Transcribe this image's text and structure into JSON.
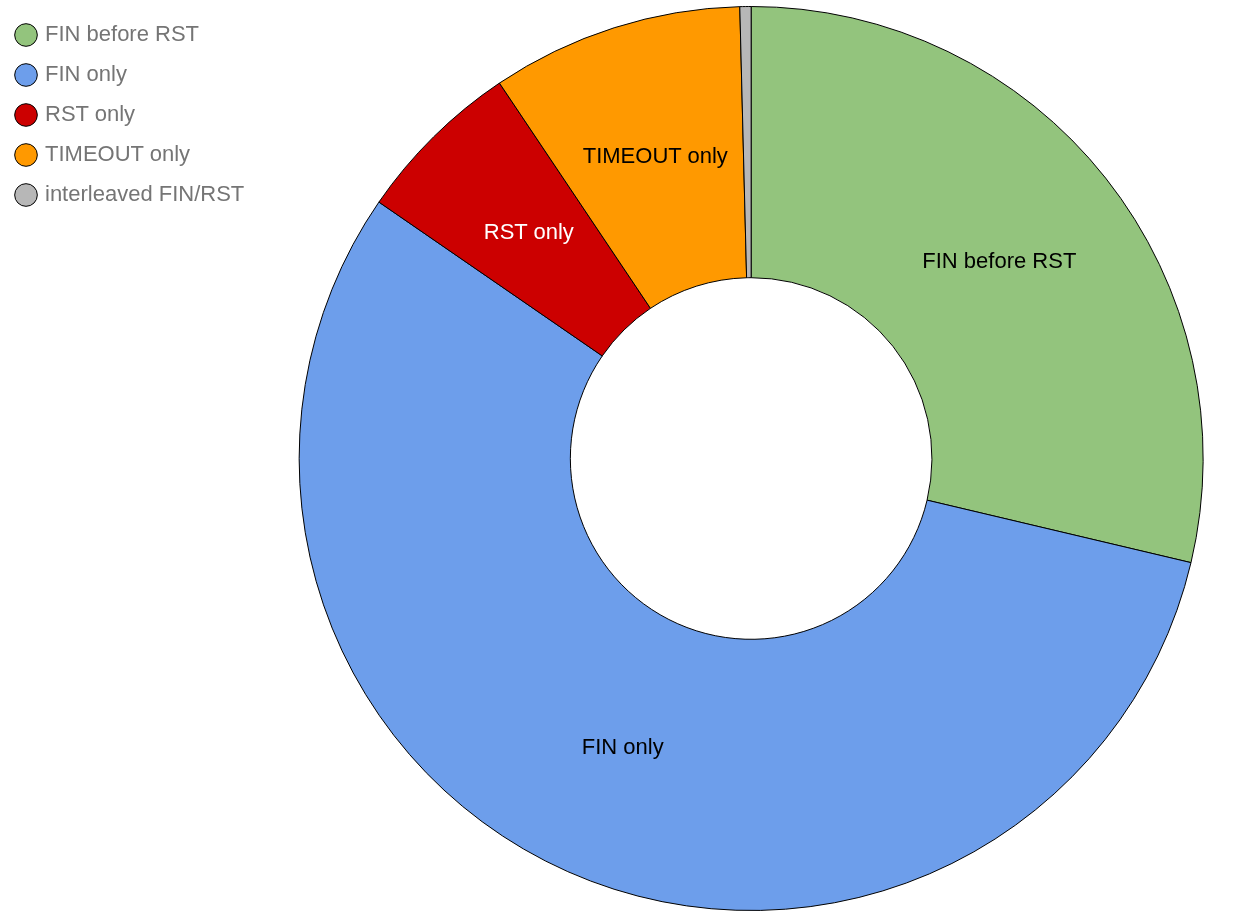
{
  "chart_data": {
    "type": "donut",
    "categories": [
      "FIN before RST",
      "FIN only",
      "RST only",
      "TIMEOUT only",
      "interleaved FIN/RST"
    ],
    "values": [
      28.7,
      55.9,
      6.0,
      9.0,
      0.4
    ],
    "colors": [
      "#93c47d",
      "#6d9eeb",
      "#cc0000",
      "#ff9900",
      "#b7b7b7"
    ],
    "legend": "top left"
  }
}
